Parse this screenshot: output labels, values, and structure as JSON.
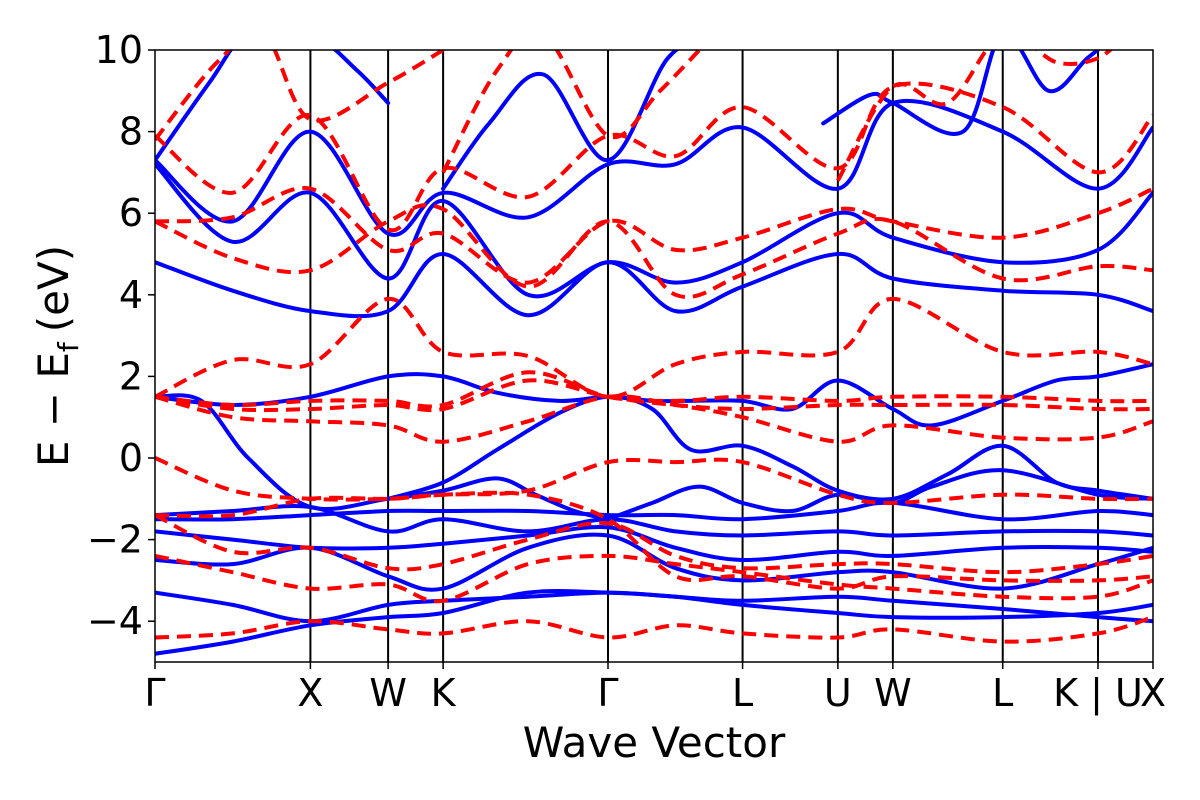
{
  "chart_data": {
    "type": "line",
    "title": "",
    "xlabel": "Wave Vector",
    "ylabel_main": "E − E",
    "ylabel_sub": "f",
    "ylabel_unit": "(eV)",
    "ylim": [
      -5,
      10
    ],
    "yticks": [
      {
        "value": -4,
        "label": "−4"
      },
      {
        "value": -2,
        "label": "−2"
      },
      {
        "value": 0,
        "label": "0"
      },
      {
        "value": 2,
        "label": "2"
      },
      {
        "value": 4,
        "label": "4"
      },
      {
        "value": 6,
        "label": "6"
      },
      {
        "value": 8,
        "label": "8"
      },
      {
        "value": 10,
        "label": "10"
      }
    ],
    "kpoints": [
      {
        "label": "Γ",
        "x": 0.0
      },
      {
        "label": "X",
        "x": 1.0
      },
      {
        "label": "W",
        "x": 1.5
      },
      {
        "label": "K",
        "x": 1.854
      },
      {
        "label": "Γ",
        "x": 2.915
      },
      {
        "label": "L",
        "x": 3.781
      },
      {
        "label": "U",
        "x": 4.394
      },
      {
        "label": "W",
        "x": 4.748
      },
      {
        "label": "L",
        "x": 5.455
      },
      {
        "label": "K | U",
        "x": 6.068
      },
      {
        "label": "X",
        "x": 6.422
      }
    ],
    "grid": false,
    "legend": "none",
    "colors": {
      "solid": "#0000ff",
      "dashed": "#ff0000"
    },
    "series": [
      {
        "style": "solid",
        "x": [
          0,
          0.5,
          1.0,
          1.5,
          1.854,
          2.4,
          2.915,
          3.35,
          3.781,
          4.394,
          4.748,
          5.455,
          6.068,
          6.422
        ],
        "y": [
          -4.8,
          -4.5,
          -4.1,
          -3.9,
          -3.8,
          -3.3,
          -3.3,
          -3.4,
          -3.6,
          -3.8,
          -3.9,
          -3.9,
          -3.8,
          -3.6
        ]
      },
      {
        "style": "solid",
        "x": [
          0,
          0.5,
          1.0,
          1.5,
          1.854,
          2.4,
          2.915,
          3.35,
          3.781,
          4.394,
          4.748,
          5.455,
          6.068,
          6.422
        ],
        "y": [
          -3.3,
          -3.6,
          -4.0,
          -3.6,
          -3.5,
          -3.4,
          -3.3,
          -3.4,
          -3.5,
          -3.4,
          -3.5,
          -3.7,
          -3.9,
          -4.0
        ]
      },
      {
        "style": "solid",
        "x": [
          0,
          0.5,
          1.0,
          1.5,
          1.854,
          2.4,
          2.915,
          3.35,
          3.781,
          4.394,
          4.748,
          5.455,
          6.068,
          6.422
        ],
        "y": [
          -2.5,
          -2.6,
          -2.2,
          -2.9,
          -3.2,
          -2.2,
          -1.9,
          -2.7,
          -3.0,
          -2.8,
          -2.8,
          -3.2,
          -2.6,
          -2.2
        ]
      },
      {
        "style": "solid",
        "x": [
          0,
          0.5,
          1.0,
          1.5,
          1.854,
          2.4,
          2.915,
          3.35,
          3.781,
          4.394,
          4.748,
          5.455,
          6.068,
          6.422
        ],
        "y": [
          -1.8,
          -2.0,
          -2.2,
          -2.2,
          -2.1,
          -1.9,
          -1.7,
          -2.2,
          -2.5,
          -2.3,
          -2.4,
          -2.2,
          -2.2,
          -2.3
        ]
      },
      {
        "style": "solid",
        "x": [
          0,
          0.5,
          1.0,
          1.5,
          1.854,
          2.4,
          2.915,
          3.35,
          3.781,
          4.394,
          4.748,
          5.455,
          6.068,
          6.422
        ],
        "y": [
          -1.4,
          -1.3,
          -1.2,
          -1.8,
          -1.5,
          -1.8,
          -1.5,
          -1.8,
          -1.9,
          -1.8,
          -1.9,
          -1.8,
          -1.8,
          -1.9
        ]
      },
      {
        "style": "solid",
        "x": [
          0,
          0.5,
          1.0,
          1.5,
          1.854,
          2.4,
          2.915,
          3.35,
          3.781,
          4.394,
          4.748,
          5.455,
          6.068,
          6.422
        ],
        "y": [
          -1.5,
          -1.5,
          -1.4,
          -1.3,
          -1.3,
          -1.3,
          -1.4,
          -1.4,
          -1.5,
          -1.3,
          -1.1,
          -1.5,
          -1.3,
          -1.4
        ]
      },
      {
        "style": "solid",
        "x": [
          0,
          0.3,
          0.6,
          1.0,
          1.5,
          1.854,
          2.2,
          2.45,
          2.7,
          2.915
        ],
        "y": [
          1.5,
          1.4,
          0.0,
          -1.2,
          -1.0,
          -0.8,
          -0.5,
          -0.9,
          -1.3,
          -1.5
        ]
      },
      {
        "style": "solid",
        "x": [
          2.915,
          3.2,
          3.5,
          3.781,
          4.1,
          4.394,
          4.748,
          5.0,
          5.455,
          6.068,
          6.422
        ],
        "y": [
          -1.5,
          -1.1,
          -0.7,
          -1.1,
          -1.3,
          -0.9,
          -1.1,
          -0.7,
          -0.3,
          -0.9,
          -1.0
        ]
      },
      {
        "style": "solid",
        "x": [
          0,
          0.5,
          1.0,
          1.5,
          1.854,
          2.2,
          2.6,
          2.915,
          3.2,
          3.4,
          3.781,
          4.1,
          4.394,
          4.748,
          5.0,
          5.455,
          5.8,
          6.068,
          6.422
        ],
        "y": [
          1.5,
          1.3,
          1.5,
          2.0,
          2.0,
          1.6,
          1.4,
          1.5,
          1.4,
          1.4,
          1.4,
          1.2,
          1.9,
          1.2,
          0.8,
          1.4,
          1.9,
          2.0,
          2.3
        ]
      },
      {
        "style": "solid",
        "x": [
          1.5,
          1.854,
          2.2,
          2.6,
          2.915,
          3.2,
          3.45,
          3.781,
          4.1,
          4.394,
          4.748,
          5.1,
          5.455,
          5.8,
          6.068,
          6.422
        ],
        "y": [
          -1.0,
          -0.6,
          0.2,
          1.1,
          1.5,
          1.2,
          0.2,
          0.3,
          -0.2,
          -0.8,
          -1.0,
          -0.4,
          0.3,
          -0.6,
          -0.8,
          -1.0
        ]
      },
      {
        "style": "solid",
        "x": [
          0,
          0.5,
          1.0,
          1.5,
          1.854,
          2.4,
          2.915,
          3.35,
          3.781,
          4.394,
          4.748,
          5.455,
          6.068,
          6.422
        ],
        "y": [
          4.8,
          4.1,
          3.6,
          3.6,
          5.0,
          3.5,
          4.8,
          3.6,
          4.2,
          5.0,
          4.4,
          4.1,
          4.0,
          3.6
        ]
      },
      {
        "style": "solid",
        "x": [
          0,
          0.5,
          1.0,
          1.5,
          1.854,
          2.4,
          2.915,
          3.35,
          3.781,
          4.394,
          4.748,
          5.455,
          6.068,
          6.422
        ],
        "y": [
          7.2,
          5.3,
          6.5,
          4.4,
          6.3,
          4.0,
          4.8,
          4.3,
          4.8,
          6.0,
          5.4,
          4.8,
          5.1,
          6.5
        ]
      },
      {
        "style": "solid",
        "x": [
          0,
          0.5,
          1.0,
          1.5,
          1.854,
          2.4,
          2.915,
          3.35,
          3.781,
          4.394,
          4.748,
          5.455,
          6.068,
          6.422
        ],
        "y": [
          7.3,
          5.8,
          8.0,
          5.5,
          6.5,
          5.9,
          7.2,
          7.2,
          8.1,
          6.6,
          8.7,
          8.0,
          6.6,
          8.1
        ]
      },
      {
        "style": "solid",
        "x": [
          0,
          0.35,
          0.6,
          1.0,
          1.3,
          1.5
        ],
        "y": [
          7.3,
          9.2,
          10.4,
          10.4,
          9.5,
          8.7
        ]
      },
      {
        "style": "solid",
        "x": [
          1.854,
          2.15,
          2.5,
          2.915,
          3.3,
          3.6
        ],
        "y": [
          6.6,
          8.2,
          9.4,
          7.3,
          9.8,
          10.4
        ]
      },
      {
        "style": "solid",
        "x": [
          4.3,
          4.6,
          4.748,
          5.2,
          5.455,
          5.75,
          6.0,
          6.2
        ],
        "y": [
          8.2,
          8.9,
          8.7,
          8.0,
          10.4,
          9.0,
          9.8,
          10.4
        ]
      },
      {
        "style": "dashed",
        "x": [
          0,
          0.5,
          1.0,
          1.5,
          1.854,
          2.4,
          2.915,
          3.35,
          3.781,
          4.394,
          4.748,
          5.455,
          6.068,
          6.422
        ],
        "y": [
          -4.4,
          -4.3,
          -4.0,
          -4.2,
          -4.3,
          -4.0,
          -4.4,
          -4.1,
          -4.3,
          -4.4,
          -4.2,
          -4.5,
          -4.3,
          -3.9
        ]
      },
      {
        "style": "dashed",
        "x": [
          0,
          0.5,
          1.0,
          1.5,
          1.854,
          2.4,
          2.915,
          3.35,
          3.781,
          4.394,
          4.748,
          5.455,
          6.068,
          6.422
        ],
        "y": [
          -2.4,
          -2.8,
          -3.2,
          -3.1,
          -3.5,
          -2.6,
          -2.4,
          -2.6,
          -2.8,
          -3.1,
          -3.2,
          -3.4,
          -3.4,
          -3.0
        ]
      },
      {
        "style": "dashed",
        "x": [
          0,
          0.5,
          1.0,
          1.5,
          1.854,
          2.4,
          2.915,
          3.35,
          3.781,
          4.394,
          4.748,
          5.455,
          6.068,
          6.422
        ],
        "y": [
          -1.4,
          -2.3,
          -2.2,
          -2.7,
          -2.6,
          -2.0,
          -1.6,
          -2.4,
          -2.7,
          -2.6,
          -2.6,
          -2.8,
          -2.6,
          -2.4
        ]
      },
      {
        "style": "dashed",
        "x": [
          0,
          0.5,
          1.0,
          1.5,
          1.854,
          2.4,
          2.915,
          3.35,
          3.781,
          4.394,
          4.748,
          5.455,
          6.068,
          6.422
        ],
        "y": [
          -1.4,
          -1.4,
          -1.0,
          -1.0,
          -0.9,
          -0.9,
          -1.5,
          -2.9,
          -2.9,
          -3.2,
          -2.9,
          -3.0,
          -3.0,
          -2.9
        ]
      },
      {
        "style": "dashed",
        "x": [
          0,
          0.5,
          1.0,
          1.5,
          1.854,
          2.4,
          2.915,
          3.35,
          3.781,
          4.394,
          4.748,
          5.455,
          6.068,
          6.422
        ],
        "y": [
          0.0,
          -0.8,
          -1.0,
          -1.0,
          -0.9,
          -0.8,
          -0.1,
          -0.1,
          -0.1,
          -0.9,
          -1.1,
          -0.9,
          -1.0,
          -1.0
        ]
      },
      {
        "style": "dashed",
        "x": [
          0,
          0.5,
          1.0,
          1.5,
          1.854,
          2.4,
          2.915,
          3.35,
          3.781,
          4.394,
          4.748,
          5.455,
          6.068,
          6.422
        ],
        "y": [
          1.5,
          1.0,
          0.9,
          0.8,
          0.4,
          0.9,
          1.5,
          1.3,
          1.0,
          0.4,
          0.8,
          0.5,
          0.5,
          0.9
        ]
      },
      {
        "style": "dashed",
        "x": [
          0,
          0.5,
          1.0,
          1.5,
          1.854,
          2.4,
          2.915,
          3.35,
          3.781,
          4.394,
          4.748,
          5.455,
          6.068,
          6.422
        ],
        "y": [
          1.5,
          1.2,
          1.2,
          1.3,
          1.2,
          1.9,
          1.5,
          1.3,
          1.2,
          1.3,
          1.3,
          1.3,
          1.2,
          1.2
        ]
      },
      {
        "style": "dashed",
        "x": [
          0,
          0.5,
          1.0,
          1.5,
          1.854,
          2.4,
          2.915,
          3.35,
          3.781,
          4.394,
          4.748,
          5.455,
          6.068,
          6.422
        ],
        "y": [
          1.5,
          2.4,
          2.3,
          3.9,
          2.6,
          2.5,
          1.5,
          2.3,
          2.6,
          2.6,
          3.9,
          2.6,
          2.6,
          2.3
        ]
      },
      {
        "style": "dashed",
        "x": [
          0,
          0.5,
          1.0,
          1.5,
          1.854,
          2.4,
          2.915,
          3.35,
          3.781,
          4.394,
          4.748,
          5.455,
          6.068,
          6.422
        ],
        "y": [
          1.5,
          1.3,
          1.4,
          1.4,
          1.3,
          2.1,
          1.5,
          1.4,
          1.5,
          1.4,
          1.5,
          1.5,
          1.4,
          1.4
        ]
      },
      {
        "style": "dashed",
        "x": [
          0,
          0.5,
          1.0,
          1.5,
          1.854,
          2.4,
          2.915,
          3.35,
          3.781,
          4.394,
          4.748,
          5.455,
          6.068,
          6.422
        ],
        "y": [
          5.8,
          4.9,
          4.6,
          5.8,
          6.1,
          4.2,
          5.8,
          4.0,
          4.5,
          5.5,
          5.8,
          4.4,
          4.7,
          4.6
        ]
      },
      {
        "style": "dashed",
        "x": [
          0,
          0.5,
          1.0,
          1.5,
          1.854,
          2.4,
          2.915,
          3.35,
          3.781,
          4.394,
          4.748,
          5.455,
          6.068,
          6.422
        ],
        "y": [
          5.8,
          5.9,
          6.6,
          5.1,
          5.5,
          4.3,
          5.8,
          5.1,
          5.4,
          6.1,
          5.8,
          5.4,
          6.0,
          6.6
        ]
      },
      {
        "style": "dashed",
        "x": [
          0,
          0.5,
          1.0,
          1.5,
          1.854,
          2.4,
          2.915,
          3.35,
          3.781,
          4.394,
          4.748,
          5.455,
          6.068,
          6.422
        ],
        "y": [
          7.9,
          6.5,
          8.4,
          5.6,
          7.1,
          6.4,
          7.9,
          7.4,
          8.6,
          7.1,
          9.1,
          8.6,
          7.0,
          8.4
        ]
      },
      {
        "style": "dashed",
        "x": [
          0,
          0.4,
          0.7,
          1.0,
          1.5,
          1.854
        ],
        "y": [
          7.8,
          9.7,
          10.4,
          8.3,
          9.2,
          10.0
        ]
      },
      {
        "style": "dashed",
        "x": [
          1.854,
          2.2,
          2.5,
          2.915,
          3.25,
          3.6
        ],
        "y": [
          7.0,
          9.5,
          10.4,
          7.9,
          9.0,
          10.4
        ]
      },
      {
        "style": "dashed",
        "x": [
          4.394,
          4.748,
          5.1,
          5.455,
          5.8,
          6.068,
          6.25
        ],
        "y": [
          6.8,
          9.1,
          8.7,
          10.4,
          9.7,
          9.8,
          10.4
        ]
      }
    ]
  }
}
